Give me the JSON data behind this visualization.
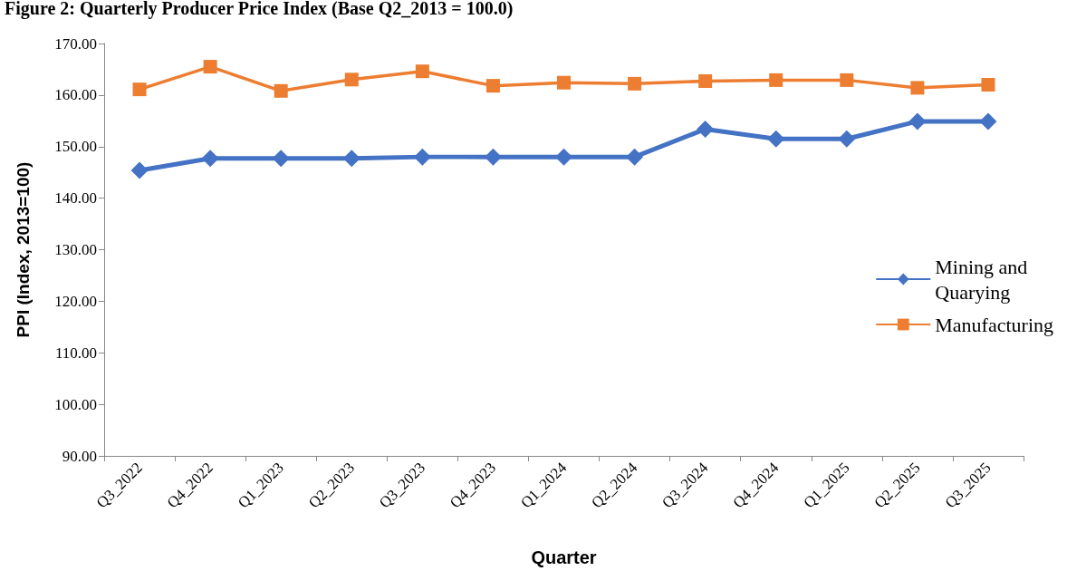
{
  "chart_data": {
    "type": "line",
    "title": "Figure 2: Quarterly Producer Price Index (Base Q2_2013 = 100.0)",
    "xlabel": "Quarter",
    "ylabel": "PPI (Index, 2013=100)",
    "categories": [
      "Q3_2022",
      "Q4_2022",
      "Q1_2023",
      "Q2_2023",
      "Q3_2023",
      "Q4_2023",
      "Q1_2024",
      "Q2_2024",
      "Q3_2024",
      "Q4_2024",
      "Q1_2025",
      "Q2_2025",
      "Q3_2025"
    ],
    "series": [
      {
        "name": "Mining and Quarying",
        "color": "#4472c4",
        "marker": "diamond",
        "values": [
          145.4,
          147.7,
          147.7,
          147.7,
          148.0,
          148.0,
          148.0,
          148.0,
          153.4,
          151.5,
          151.5,
          154.9,
          154.9
        ]
      },
      {
        "name": "Manufacturing",
        "color": "#ed7d31",
        "marker": "square",
        "values": [
          161.1,
          165.5,
          160.8,
          163.0,
          164.6,
          161.8,
          162.4,
          162.2,
          162.7,
          162.9,
          162.9,
          161.4,
          162.0
        ]
      }
    ],
    "ylim": [
      90,
      170
    ],
    "yticks": [
      {
        "value": 90,
        "label": "90.00"
      },
      {
        "value": 100,
        "label": "100.00"
      },
      {
        "value": 110,
        "label": "110.00"
      },
      {
        "value": 120,
        "label": "120.00"
      },
      {
        "value": 130,
        "label": "130.00"
      },
      {
        "value": 140,
        "label": "140.00"
      },
      {
        "value": 150,
        "label": "150.00"
      },
      {
        "value": 160,
        "label": "160.00"
      },
      {
        "value": 170,
        "label": "170.00"
      }
    ],
    "grid": false,
    "legend": "right",
    "line_style": "solid"
  }
}
